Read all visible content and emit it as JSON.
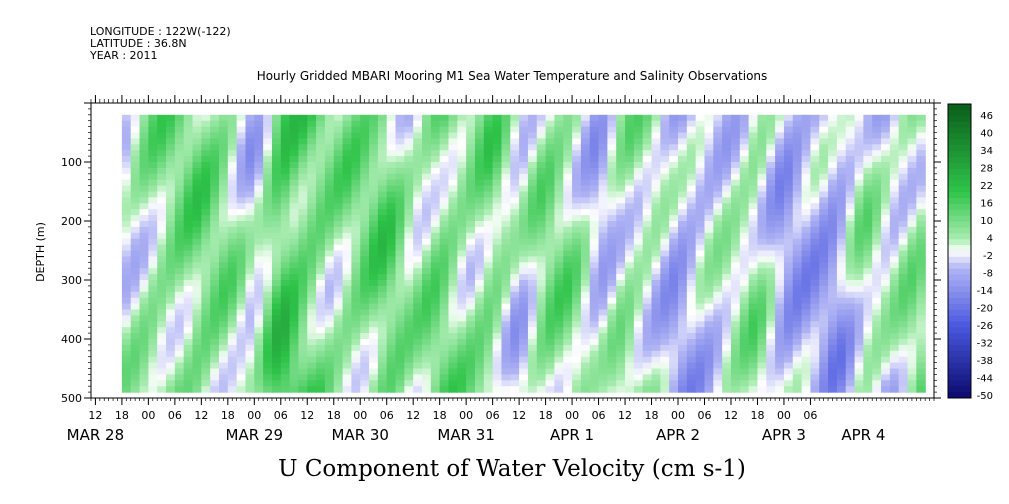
{
  "header": {
    "longitude": "LONGITUDE : 122W(-122)",
    "latitude": "LATITUDE : 36.8N",
    "year": "YEAR : 2011",
    "title": "Hourly Gridded MBARI Mooring M1 Sea Water Temperature and Salinity Observations"
  },
  "chart_data": {
    "type": "heatmap",
    "title": "Hourly Gridded MBARI Mooring M1 Sea Water Temperature and Salinity Observations",
    "variable_label": "U Component of Water Velocity (cm s-1)",
    "ylabel": "DEPTH (m)",
    "y_axis": {
      "ticks": [
        100,
        200,
        300,
        400,
        500
      ],
      "tick_labels": [
        "100",
        "200",
        "300",
        "400",
        "500"
      ],
      "range": [
        0,
        500
      ],
      "inverted": true
    },
    "x_axis": {
      "range_hours": [
        -13,
        178
      ],
      "hour_tick_labels": [
        "12",
        "18",
        "00",
        "06",
        "12",
        "18",
        "00",
        "06",
        "12",
        "18",
        "00",
        "06",
        "12",
        "18",
        "00",
        "06",
        "12",
        "18",
        "00",
        "06",
        "12",
        "18",
        "00",
        "06",
        "12",
        "18",
        "00",
        "06"
      ],
      "date_labels": [
        {
          "text": "MAR 28",
          "hour": -12
        },
        {
          "text": "MAR 29",
          "hour": 24
        },
        {
          "text": "MAR 30",
          "hour": 48
        },
        {
          "text": "MAR 31",
          "hour": 72
        },
        {
          "text": "APR  1",
          "hour": 96
        },
        {
          "text": "APR  2",
          "hour": 120
        },
        {
          "text": "APR  3",
          "hour": 144
        },
        {
          "text": "APR  4",
          "hour": 162
        }
      ]
    },
    "data_extent": {
      "start_hour": -6,
      "end_hour": 176,
      "depth_top": 20,
      "depth_bottom": 490
    },
    "colorbar": {
      "labels": [
        "46",
        "40",
        "34",
        "28",
        "22",
        "16",
        "10",
        "4",
        "-2",
        "-8",
        "-14",
        "-20",
        "-26",
        "-32",
        "-38",
        "-44",
        "-50"
      ],
      "min": -50,
      "max": 50
    },
    "colors": {
      "strong_positive": "#0a5d1a",
      "positive": "#2fc44a",
      "weak_positive": "#a8ecb0",
      "near_zero": "#ffffff",
      "weak_negative": "#b0b4f4",
      "negative": "#4c5ae0",
      "strong_negative": "#0a0a6e"
    },
    "column_profile_hourly": [
      {
        "hour": -6,
        "u": 0
      },
      {
        "hour": 0,
        "u": 6
      },
      {
        "hour": 6,
        "u": 8
      },
      {
        "hour": 12,
        "u": 10
      },
      {
        "hour": 18,
        "u": 6
      },
      {
        "hour": 24,
        "u": -4
      },
      {
        "hour": 30,
        "u": 18
      },
      {
        "hour": 36,
        "u": 12
      },
      {
        "hour": 42,
        "u": 6
      },
      {
        "hour": 48,
        "u": 8
      },
      {
        "hour": 54,
        "u": 12
      },
      {
        "hour": 60,
        "u": 2
      },
      {
        "hour": 66,
        "u": 10
      },
      {
        "hour": 72,
        "u": 6
      },
      {
        "hour": 78,
        "u": 10
      },
      {
        "hour": 84,
        "u": -4
      },
      {
        "hour": 90,
        "u": 8
      },
      {
        "hour": 96,
        "u": 6
      },
      {
        "hour": 102,
        "u": -6
      },
      {
        "hour": 108,
        "u": 6
      },
      {
        "hour": 114,
        "u": 2
      },
      {
        "hour": 120,
        "u": -8
      },
      {
        "hour": 126,
        "u": -4
      },
      {
        "hour": 132,
        "u": 0
      },
      {
        "hour": 138,
        "u": 6
      },
      {
        "hour": 144,
        "u": -8
      },
      {
        "hour": 150,
        "u": -6
      },
      {
        "hour": 156,
        "u": -10
      },
      {
        "hour": 162,
        "u": 4
      },
      {
        "hour": 168,
        "u": -2
      },
      {
        "hour": 174,
        "u": 6
      }
    ]
  }
}
